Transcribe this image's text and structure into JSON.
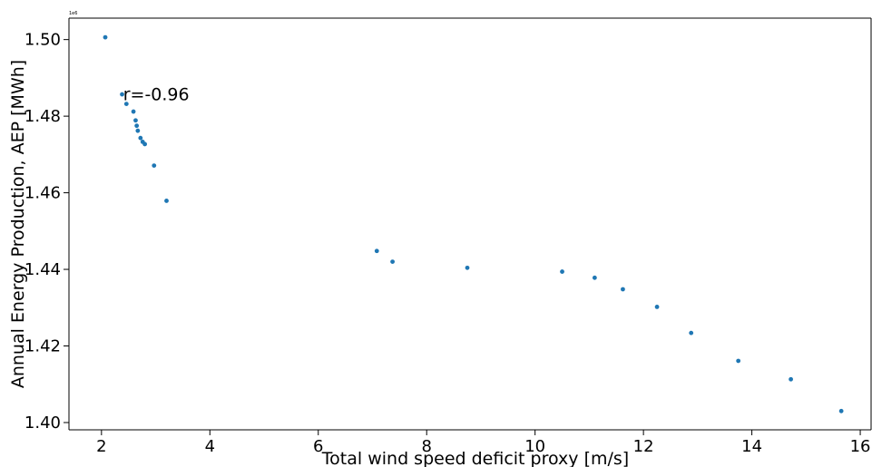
{
  "chart_data": {
    "type": "scatter",
    "title": "",
    "xlabel": "Total wind speed deficit proxy [m/s]",
    "ylabel": "Annual Energy Production, AEP [MWh]",
    "y_offset_label": "1e6",
    "xlim": [
      1.4,
      16.2
    ],
    "ylim": [
      1.3981,
      1.5056
    ],
    "xticks": [
      2,
      4,
      6,
      8,
      10,
      12,
      14,
      16
    ],
    "xtick_labels": [
      "2",
      "4",
      "6",
      "8",
      "10",
      "12",
      "14",
      "16"
    ],
    "yticks": [
      1.4,
      1.42,
      1.44,
      1.46,
      1.48,
      1.5
    ],
    "ytick_labels": [
      "1.40",
      "1.42",
      "1.44",
      "1.46",
      "1.48",
      "1.50"
    ],
    "grid": false,
    "point_color": "#1f77b4",
    "annotation": {
      "text": "r=-0.96",
      "x": 2.4,
      "y": 1.4858
    },
    "points": [
      {
        "x": 2.07,
        "y": 1.5006
      },
      {
        "x": 2.38,
        "y": 1.4857
      },
      {
        "x": 2.46,
        "y": 1.4832
      },
      {
        "x": 2.59,
        "y": 1.4812
      },
      {
        "x": 2.63,
        "y": 1.4789
      },
      {
        "x": 2.65,
        "y": 1.4775
      },
      {
        "x": 2.67,
        "y": 1.4762
      },
      {
        "x": 2.72,
        "y": 1.4743
      },
      {
        "x": 2.76,
        "y": 1.4733
      },
      {
        "x": 2.8,
        "y": 1.4727
      },
      {
        "x": 2.97,
        "y": 1.4671
      },
      {
        "x": 3.2,
        "y": 1.4579
      },
      {
        "x": 7.08,
        "y": 1.4448
      },
      {
        "x": 7.37,
        "y": 1.442
      },
      {
        "x": 8.75,
        "y": 1.4404
      },
      {
        "x": 10.5,
        "y": 1.4394
      },
      {
        "x": 11.1,
        "y": 1.4378
      },
      {
        "x": 11.62,
        "y": 1.4348
      },
      {
        "x": 12.25,
        "y": 1.4302
      },
      {
        "x": 12.88,
        "y": 1.4234
      },
      {
        "x": 13.75,
        "y": 1.4161
      },
      {
        "x": 14.72,
        "y": 1.4113
      },
      {
        "x": 15.65,
        "y": 1.403
      }
    ]
  }
}
